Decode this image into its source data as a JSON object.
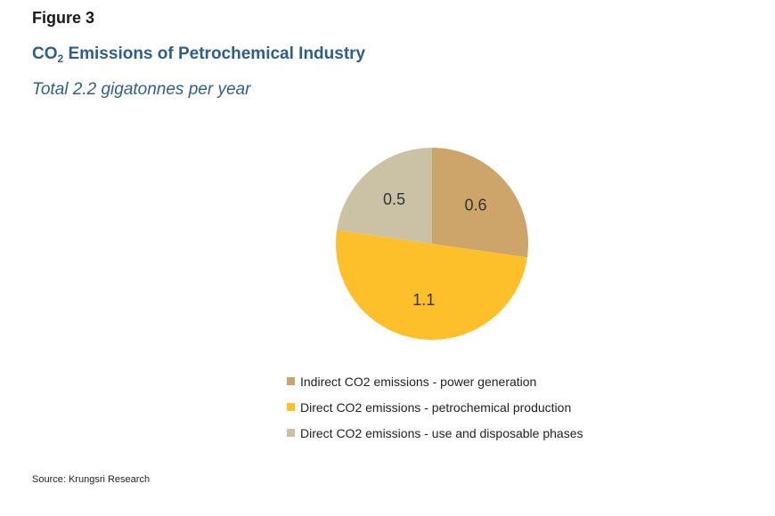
{
  "figure_label": "Figure 3",
  "title": {
    "prefix": "CO",
    "subscript": "2",
    "suffix": " Emissions of Petrochemical Industry"
  },
  "subtitle": "Total 2.2 gigatonnes per year",
  "source": "Source: Krungsri Research",
  "chart_data": {
    "type": "pie",
    "title": "CO2 Emissions of Petrochemical Industry",
    "subtitle": "Total 2.2 gigatonnes per year",
    "categories": [
      "Indirect CO2 emissions - power generation",
      "Direct CO2 emissions - petrochemical production",
      "Direct CO2 emissions - use and disposable phases"
    ],
    "values": [
      0.6,
      1.1,
      0.5
    ],
    "data_labels": [
      "0.6",
      "1.1",
      "0.5"
    ],
    "colors": [
      "#cda56a",
      "#fec02a",
      "#cbc2a6"
    ],
    "legend_position": "bottom"
  }
}
